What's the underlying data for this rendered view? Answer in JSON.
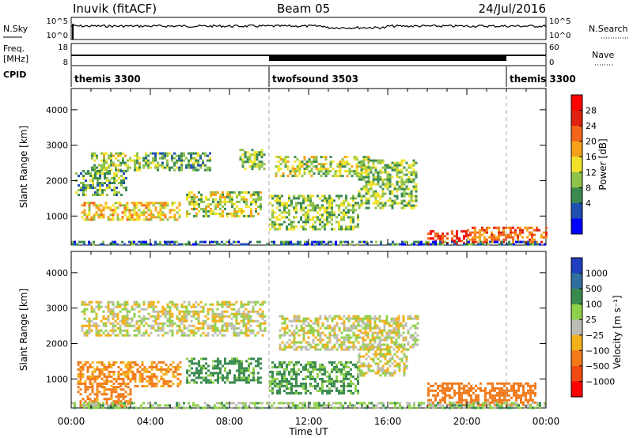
{
  "header": {
    "station": "Inuvik (fitACF)",
    "beam": "Beam 05",
    "date": "24/Jul/2016"
  },
  "panels": {
    "nsky": {
      "left_label": "N.Sky",
      "left_ticks": [
        "10^5",
        "10^0"
      ],
      "right_label": "N.Search",
      "right_ticks": [
        "10^5",
        "10^0"
      ]
    },
    "freq": {
      "left_label_1": "Freq.",
      "left_label_2": "[MHz]",
      "left_ticks": [
        "18",
        "8"
      ],
      "right_label": "Nave",
      "right_ticks": [
        "60",
        "0"
      ]
    },
    "cpid": {
      "label": "CPID",
      "segments": [
        {
          "name": "themis 3300",
          "start_hour": 0,
          "end_hour": 10
        },
        {
          "name": "twofsound 3503",
          "start_hour": 10,
          "end_hour": 22
        },
        {
          "name": "themis 3300",
          "start_hour": 22,
          "end_hour": 24
        }
      ]
    }
  },
  "chart_data": [
    {
      "type": "heatmap",
      "title": "",
      "ylabel": "Slant Range [km]",
      "xlabel": "",
      "xlim": [
        0,
        24
      ],
      "ylim": [
        180,
        4600
      ],
      "yticks": [
        "1000",
        "2000",
        "3000",
        "4000"
      ],
      "colorbar": {
        "label": "Power [dB]",
        "ticks": [
          "4",
          "8",
          "12",
          "16",
          "20",
          "24",
          "28"
        ],
        "colors": [
          "#0000ff",
          "#1f4fb0",
          "#3a8a50",
          "#8fc24a",
          "#f2e32a",
          "#f7a01a",
          "#f2651a",
          "#e02010",
          "#ff0000"
        ]
      },
      "echo_regions": [
        {
          "t0": 1.0,
          "t1": 3.5,
          "r0": 2300,
          "r1": 2800,
          "value": 14
        },
        {
          "t0": 0.2,
          "t1": 2.8,
          "r0": 1600,
          "r1": 2300,
          "value": 10
        },
        {
          "t0": 0.5,
          "t1": 5.5,
          "r0": 900,
          "r1": 1400,
          "value": 18
        },
        {
          "t0": 3.6,
          "t1": 7.0,
          "r0": 2300,
          "r1": 2800,
          "value": 10
        },
        {
          "t0": 5.8,
          "t1": 9.6,
          "r0": 1000,
          "r1": 1700,
          "value": 14
        },
        {
          "t0": 8.5,
          "t1": 9.8,
          "r0": 2300,
          "r1": 2900,
          "value": 12
        },
        {
          "t0": 10.3,
          "t1": 15.0,
          "r0": 2100,
          "r1": 2700,
          "value": 14
        },
        {
          "t0": 10.0,
          "t1": 14.5,
          "r0": 600,
          "r1": 1600,
          "value": 12
        },
        {
          "t0": 14.5,
          "t1": 17.5,
          "r0": 1200,
          "r1": 2600,
          "value": 12
        },
        {
          "t0": 18.0,
          "t1": 20.0,
          "r0": 200,
          "r1": 600,
          "value": 28
        },
        {
          "t0": 20.0,
          "t1": 24.0,
          "r0": 250,
          "r1": 700,
          "value": 24
        },
        {
          "t0": 0.0,
          "t1": 24.0,
          "r0": 180,
          "r1": 300,
          "value": 6
        }
      ]
    },
    {
      "type": "heatmap",
      "title": "",
      "ylabel": "Slant Range [km]",
      "xlabel": "Time UT",
      "xlim": [
        0,
        24
      ],
      "ylim": [
        180,
        4600
      ],
      "xticks": [
        "00:00",
        "04:00",
        "08:00",
        "12:00",
        "16:00",
        "20:00",
        "00:00"
      ],
      "yticks": [
        "1000",
        "2000",
        "3000",
        "4000"
      ],
      "colorbar": {
        "label": "Velocity [m s⁻¹]",
        "ticks": [
          "1000",
          "500",
          "100",
          "25",
          "−25",
          "−100",
          "−500",
          "−1000"
        ],
        "colors": [
          "#1f3fbf",
          "#2f6f9f",
          "#3a8a50",
          "#8fd04a",
          "#bdbdb5",
          "#f2b01a",
          "#f27a1a",
          "#f24a10",
          "#ff0000"
        ]
      },
      "echo_regions": [
        {
          "t0": 0.5,
          "t1": 9.8,
          "r0": 2200,
          "r1": 3200,
          "value": 0
        },
        {
          "t0": 10.5,
          "t1": 17.5,
          "r0": 1800,
          "r1": 2800,
          "value": 0
        },
        {
          "t0": 0.3,
          "t1": 5.5,
          "r0": 800,
          "r1": 1500,
          "value": -120
        },
        {
          "t0": 0.3,
          "t1": 3.0,
          "r0": 250,
          "r1": 800,
          "value": -150
        },
        {
          "t0": 5.8,
          "t1": 9.6,
          "r0": 900,
          "r1": 1600,
          "value": 150
        },
        {
          "t0": 10.0,
          "t1": 14.5,
          "r0": 600,
          "r1": 1500,
          "value": 120
        },
        {
          "t0": 14.5,
          "t1": 17.0,
          "r0": 1100,
          "r1": 2000,
          "value": 0
        },
        {
          "t0": 18.0,
          "t1": 23.5,
          "r0": 250,
          "r1": 900,
          "value": -200
        },
        {
          "t0": 0.0,
          "t1": 24.0,
          "r0": 180,
          "r1": 350,
          "value": 60
        }
      ]
    }
  ]
}
